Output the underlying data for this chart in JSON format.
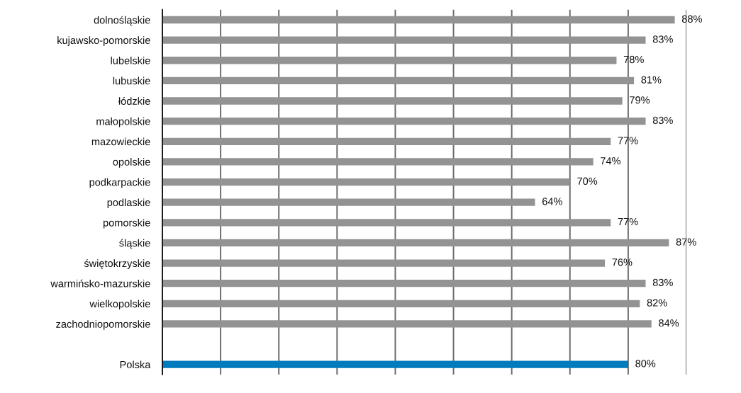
{
  "chart_data": {
    "type": "bar",
    "orientation": "horizontal",
    "categories": [
      "dolnośląskie",
      "kujawsko-pomorskie",
      "lubelskie",
      "lubuskie",
      "łódzkie",
      "małopolskie",
      "mazowieckie",
      "opolskie",
      "podkarpackie",
      "podlaskie",
      "pomorskie",
      "śląskie",
      "świętokrzyskie",
      "warmińsko-mazurskie",
      "wielkopolskie",
      "zachodniopomorskie",
      null,
      "Polska"
    ],
    "values": [
      88,
      83,
      78,
      81,
      79,
      83,
      77,
      74,
      70,
      64,
      77,
      87,
      76,
      83,
      82,
      84,
      null,
      80
    ],
    "value_labels": [
      "88%",
      "83%",
      "78%",
      "81%",
      "79%",
      "83%",
      "77%",
      "74%",
      "70%",
      "64%",
      "77%",
      "87%",
      "76%",
      "83%",
      "82%",
      "84%",
      null,
      "80%"
    ],
    "colors": [
      "#939393",
      "#939393",
      "#939393",
      "#939393",
      "#939393",
      "#939393",
      "#939393",
      "#939393",
      "#939393",
      "#939393",
      "#939393",
      "#939393",
      "#939393",
      "#939393",
      "#939393",
      "#939393",
      null,
      "#007bbd"
    ],
    "xlim": [
      0,
      90
    ],
    "xticks": [
      {
        "value": 0,
        "label": null
      },
      {
        "value": 10,
        "label": null
      },
      {
        "value": 20,
        "label": null
      },
      {
        "value": 30,
        "label": null
      },
      {
        "value": 40,
        "label": null
      },
      {
        "value": 50,
        "label": null
      },
      {
        "value": 60,
        "label": null
      },
      {
        "value": 70,
        "label": null
      },
      {
        "value": 80,
        "label": null
      },
      {
        "value": 90,
        "label": null
      }
    ],
    "grid": "x",
    "tick_labels": "y",
    "legend": false
  }
}
